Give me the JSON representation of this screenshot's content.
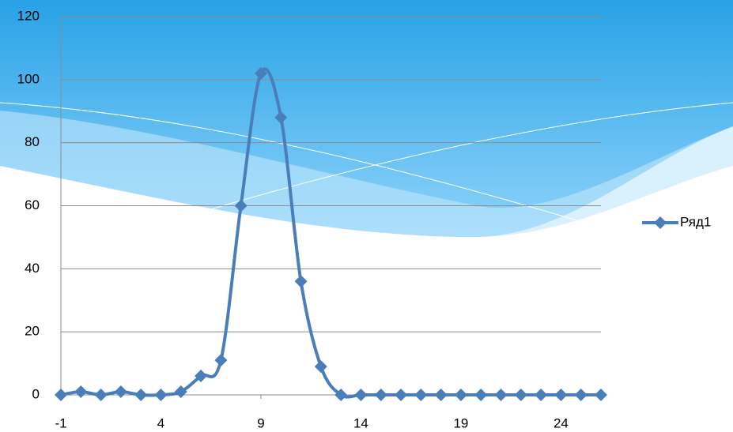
{
  "chart_data": {
    "type": "line",
    "smooth": true,
    "x": [
      -1,
      0,
      1,
      2,
      3,
      4,
      5,
      6,
      7,
      8,
      9,
      10,
      11,
      12,
      13,
      14,
      15,
      16,
      17,
      18,
      19,
      20,
      21,
      22,
      23,
      24,
      25,
      26
    ],
    "series": [
      {
        "name": "Ряд1",
        "color": "#4a7ebb",
        "values": [
          0,
          1,
          0,
          1,
          0,
          0,
          1,
          6,
          11,
          60,
          102,
          88,
          36,
          9,
          0,
          0,
          0,
          0,
          0,
          0,
          0,
          0,
          0,
          0,
          0,
          0,
          0,
          0
        ]
      }
    ],
    "xlim": [
      -1,
      26
    ],
    "xticks": [
      -1,
      4,
      9,
      14,
      19,
      24
    ],
    "ylim": [
      0,
      120
    ],
    "yticks": [
      0,
      20,
      40,
      60,
      80,
      100,
      120
    ],
    "grid": true,
    "legend": "right"
  }
}
